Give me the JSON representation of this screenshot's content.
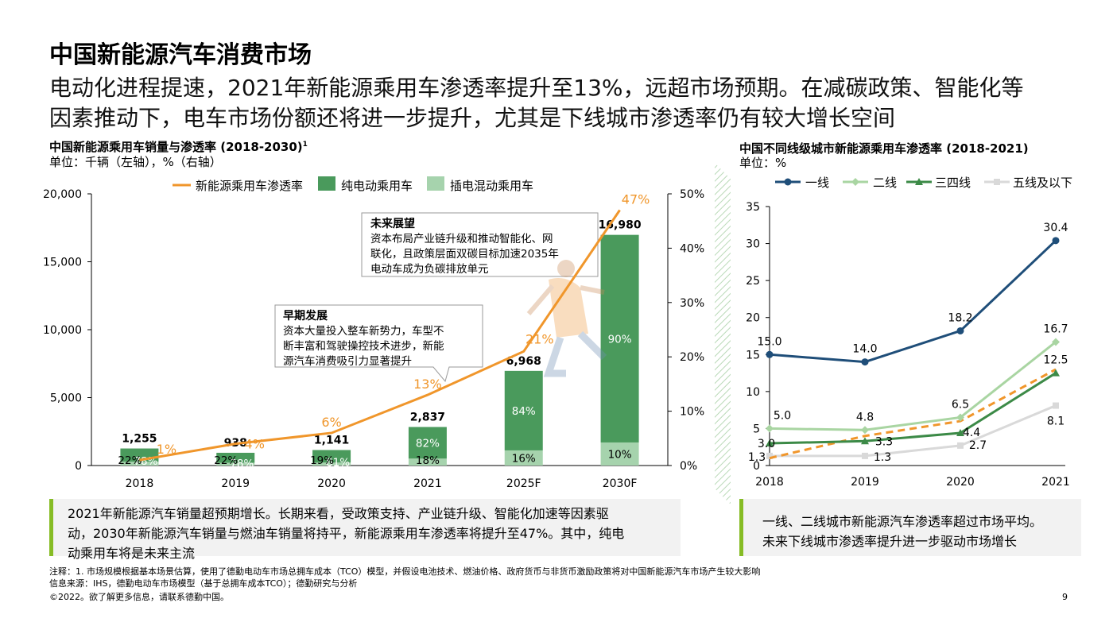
{
  "page": {
    "title": "中国新能源汽车消费市场",
    "headline_line1": "电动化进程提速，2021年新能源乘用车渗透率提升至13%，远超市场预期。在减碳政策、智能化等",
    "headline_line2": "因素推动下，电车市场份额还将进一步提升，尤其是下线城市渗透率仍有较大增长空间",
    "page_number": "9"
  },
  "left_panel": {
    "title": "中国新能源乘用车销量与渗透率 (2018-2030)",
    "title_sup": "1",
    "unit": "单位：千辆（左轴），%（右轴）",
    "callout_future": {
      "title": "未来展望",
      "line1": "资本布局产业链升级和推动智能化、网",
      "line2": "联化，且政策层面双碳目标加速2035年",
      "line3": "电动车成为负碳排放单元"
    },
    "callout_early": {
      "title": "早期发展",
      "line1": "资本大量投入整车新势力，车型不",
      "line2": "断丰富和驾驶操控技术进步，新能",
      "line3": "源汽车消费吸引力显著提升"
    },
    "note_line1": "2021年新能源汽车销量超预期增长。长期来看，受政策支持、产业链升级、智能化加速等因素驱",
    "note_line2": "动，2030年新能源汽车销量与燃油车销量将持平，新能源乘用车渗透率将提升至47%。其中，纯电",
    "note_line3": "动乘用车将是未来主流"
  },
  "right_panel": {
    "title": "中国不同线级城市新能源乘用车渗透率 (2018-2021)",
    "unit": "单位：%",
    "note_line1": "一线、二线城市新能源汽车渗透率超过市场平均。",
    "note_line2": "未来下线城市渗透率提升进一步驱动市场增长"
  },
  "footer": {
    "note": "注释：1. 市场规模根据基本场景估算，使用了德勤电动车市场总拥车成本（TCO）模型，并假设电池技术、燃油价格、政府货币与非货币激励政策将对中国新能源汽车市场产生较大影响",
    "source": "信息来源：IHS，德勤电动车市场模型（基于总拥车成本TCO）；德勤研究与分析",
    "copyright": "©2022。欲了解更多信息，请联系德勤中国。"
  },
  "colors": {
    "bev": "#4a9a5c",
    "phev": "#a6d3ad",
    "penetration": "#f0962b",
    "tier1": "#1f4e79",
    "tier2": "#a9d5a2",
    "tier34": "#3c8a47",
    "tier5": "#d9d9d9",
    "avg_dashed": "#f0962b",
    "accent": "#86bc25"
  },
  "chart_data": [
    {
      "type": "bar",
      "categories": [
        "2018",
        "2019",
        "2020",
        "2021",
        "2025F",
        "2030F"
      ],
      "totals": [
        1255,
        938,
        1141,
        2837,
        6968,
        16980
      ],
      "total_labels": [
        "1,255",
        "938",
        "1,141",
        "2,837",
        "6,968",
        "16,980"
      ],
      "series": [
        {
          "name": "纯电动乘用车",
          "share_labels": [
            "78%",
            "78%",
            "81%",
            "82%",
            "84%",
            "90%"
          ],
          "share": [
            0.78,
            0.78,
            0.81,
            0.82,
            0.84,
            0.9
          ]
        },
        {
          "name": "插电混动乘用车",
          "share_labels": [
            "22%",
            "22%",
            "19%",
            "18%",
            "16%",
            "10%"
          ],
          "share": [
            0.22,
            0.22,
            0.19,
            0.18,
            0.16,
            0.1
          ]
        }
      ],
      "line_series": {
        "name": "新能源乘用车渗透率",
        "values": [
          1,
          4,
          6,
          13,
          21,
          47
        ],
        "labels": [
          "1%",
          "4%",
          "6%",
          "13%",
          "21%",
          "47%"
        ]
      },
      "y_left": {
        "min": 0,
        "max": 20000,
        "ticks": [
          "0",
          "5,000",
          "10,000",
          "15,000",
          "20,000"
        ]
      },
      "y_right": {
        "min": 0,
        "max": 50,
        "ticks": [
          "0%",
          "10%",
          "20%",
          "30%",
          "40%",
          "50%"
        ]
      },
      "legend": [
        "新能源乘用车渗透率",
        "纯电动乘用车",
        "插电混动乘用车"
      ]
    },
    {
      "type": "line",
      "x": [
        "2018",
        "2019",
        "2020",
        "2021"
      ],
      "series": [
        {
          "name": "一线",
          "values": [
            15.0,
            14.0,
            18.2,
            30.4
          ],
          "labels": [
            "15.0",
            "14.0",
            "18.2",
            "30.4"
          ]
        },
        {
          "name": "二线",
          "values": [
            5.0,
            4.8,
            6.5,
            16.7
          ],
          "labels": [
            "5.0",
            "4.8",
            "6.5",
            "16.7"
          ]
        },
        {
          "name": "三四线",
          "values": [
            3.0,
            3.3,
            4.4,
            12.5
          ],
          "labels": [
            "3.0",
            "3.3",
            "4.4",
            "12.5"
          ]
        },
        {
          "name": "五线及以下",
          "values": [
            1.3,
            1.3,
            2.7,
            8.1
          ],
          "labels": [
            "1.3",
            "1.3",
            "2.7",
            "8.1"
          ]
        },
        {
          "values": [
            1.0,
            4.0,
            6.0,
            13.0
          ]
        }
      ],
      "ylim": [
        0,
        35
      ],
      "y_ticks": [
        "0",
        "5",
        "10",
        "15",
        "20",
        "25",
        "30",
        "35"
      ],
      "legend": [
        "一线",
        "二线",
        "三四线",
        "五线及以下"
      ],
      "legend_position": "top"
    }
  ]
}
